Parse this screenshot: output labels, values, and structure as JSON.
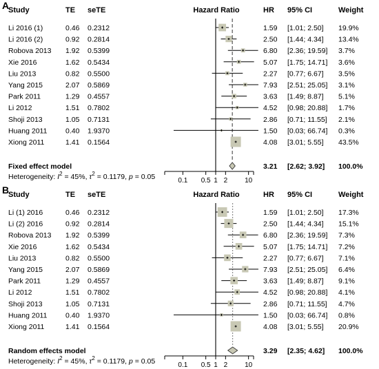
{
  "chart_data": [
    {
      "type": "forest",
      "panel": "A",
      "headers": {
        "study": "Study",
        "te": "TE",
        "sete": "seTE",
        "plot": "Hazard Ratio",
        "hr": "HR",
        "ci": "95% CI",
        "weight": "Weight"
      },
      "x_scale": "log",
      "xlim": [
        0.05,
        20
      ],
      "x_ticks": [
        0.1,
        0.5,
        1,
        2,
        10
      ],
      "x_tick_labels": [
        "0.1",
        "0.5",
        "1",
        "2",
        "10"
      ],
      "reference_line": 1,
      "pooled_line": 3.21,
      "studies": [
        {
          "study": "Li 2016 (1)",
          "te": "0.46",
          "sete": "0.2312",
          "hr": "1.59",
          "ci": "[1.01;  2.50]",
          "weight": "19.9%",
          "hr_value": 1.59,
          "lo": 1.01,
          "hi": 2.5,
          "w": 19.9
        },
        {
          "study": "Li 2016 (2)",
          "te": "0.92",
          "sete": "0.2814",
          "hr": "2.50",
          "ci": "[1.44;  4.34]",
          "weight": "13.4%",
          "hr_value": 2.5,
          "lo": 1.44,
          "hi": 4.34,
          "w": 13.4
        },
        {
          "study": "Robova 2013",
          "te": "1.92",
          "sete": "0.5399",
          "hr": "6.80",
          "ci": "[2.36; 19.59]",
          "weight": "3.7%",
          "hr_value": 6.8,
          "lo": 2.36,
          "hi": 19.59,
          "w": 3.7
        },
        {
          "study": "Xie 2016",
          "te": "1.62",
          "sete": "0.5434",
          "hr": "5.07",
          "ci": "[1.75; 14.71]",
          "weight": "3.6%",
          "hr_value": 5.07,
          "lo": 1.75,
          "hi": 14.71,
          "w": 3.6
        },
        {
          "study": "Liu 2013",
          "te": "0.82",
          "sete": "0.5500",
          "hr": "2.27",
          "ci": "[0.77;  6.67]",
          "weight": "3.5%",
          "hr_value": 2.27,
          "lo": 0.77,
          "hi": 6.67,
          "w": 3.5
        },
        {
          "study": "Yang 2015",
          "te": "2.07",
          "sete": "0.5869",
          "hr": "7.93",
          "ci": "[2.51; 25.05]",
          "weight": "3.1%",
          "hr_value": 7.93,
          "lo": 2.51,
          "hi": 25.05,
          "w": 3.1
        },
        {
          "study": "Park 2011",
          "te": "1.29",
          "sete": "0.4557",
          "hr": "3.63",
          "ci": "[1.49;  8.87]",
          "weight": "5.1%",
          "hr_value": 3.63,
          "lo": 1.49,
          "hi": 8.87,
          "w": 5.1
        },
        {
          "study": "Li 2012",
          "te": "1.51",
          "sete": "0.7802",
          "hr": "4.52",
          "ci": "[0.98; 20.88]",
          "weight": "1.7%",
          "hr_value": 4.52,
          "lo": 0.98,
          "hi": 20.88,
          "w": 1.7
        },
        {
          "study": "Shoji 2013",
          "te": "1.05",
          "sete": "0.7131",
          "hr": "2.86",
          "ci": "[0.71; 11.55]",
          "weight": "2.1%",
          "hr_value": 2.86,
          "lo": 0.71,
          "hi": 11.55,
          "w": 2.1
        },
        {
          "study": "Huang 2011",
          "te": "0.40",
          "sete": "1.9370",
          "hr": "1.50",
          "ci": "[0.03; 66.74]",
          "weight": "0.3%",
          "hr_value": 1.5,
          "lo": 0.03,
          "hi": 66.74,
          "w": 0.3
        },
        {
          "study": "Xiong 2011",
          "te": "1.41",
          "sete": "0.1564",
          "hr": "4.08",
          "ci": "[3.01;  5.55]",
          "weight": "43.5%",
          "hr_value": 4.08,
          "lo": 3.01,
          "hi": 5.55,
          "w": 43.5
        }
      ],
      "pooled": {
        "label": "Fixed effect model",
        "hr": "3.21",
        "ci": "[2.62;  3.92]",
        "weight": "100.0%",
        "hr_value": 3.21,
        "lo": 2.62,
        "hi": 3.92
      },
      "heterogeneity": {
        "prefix": "Heterogeneity:",
        "i2_base": "I",
        "i2_exp": "2",
        "i2_val": " = 45%, ",
        "tau2_base": "τ",
        "tau2_exp": "2",
        "tau2_val": " = 0.1179, ",
        "p_label": "p",
        "p_val": " = 0.05"
      },
      "colors": {
        "box": "#c8c8b4",
        "box_stroke": "#9a9a86",
        "diamond": "#c8c8b4"
      }
    },
    {
      "type": "forest",
      "panel": "B",
      "headers": {
        "study": "Study",
        "te": "TE",
        "sete": "seTE",
        "plot": "Hazard Ratio",
        "hr": "HR",
        "ci": "95% CI",
        "weight": "Weight"
      },
      "x_scale": "log",
      "xlim": [
        0.05,
        20
      ],
      "x_ticks": [
        0.1,
        0.5,
        1,
        2,
        10
      ],
      "x_tick_labels": [
        "0.1",
        "0.5",
        "1",
        "2",
        "10"
      ],
      "reference_line": 1,
      "pooled_line": 3.29,
      "studies": [
        {
          "study": "Li (1) 2016",
          "te": "0.46",
          "sete": "0.2312",
          "hr": "1.59",
          "ci": "[1.01;  2.50]",
          "weight": "17.3%",
          "hr_value": 1.59,
          "lo": 1.01,
          "hi": 2.5,
          "w": 17.3
        },
        {
          "study": "Li (2) 2016",
          "te": "0.92",
          "sete": "0.2814",
          "hr": "2.50",
          "ci": "[1.44;  4.34]",
          "weight": "15.1%",
          "hr_value": 2.5,
          "lo": 1.44,
          "hi": 4.34,
          "w": 15.1
        },
        {
          "study": "Robova 2013",
          "te": "1.92",
          "sete": "0.5399",
          "hr": "6.80",
          "ci": "[2.36; 19.59]",
          "weight": "7.3%",
          "hr_value": 6.8,
          "lo": 2.36,
          "hi": 19.59,
          "w": 7.3
        },
        {
          "study": "Xie 2016",
          "te": "1.62",
          "sete": "0.5434",
          "hr": "5.07",
          "ci": "[1.75; 14.71]",
          "weight": "7.2%",
          "hr_value": 5.07,
          "lo": 1.75,
          "hi": 14.71,
          "w": 7.2
        },
        {
          "study": "Liu 2013",
          "te": "0.82",
          "sete": "0.5500",
          "hr": "2.27",
          "ci": "[0.77;  6.67]",
          "weight": "7.1%",
          "hr_value": 2.27,
          "lo": 0.77,
          "hi": 6.67,
          "w": 7.1
        },
        {
          "study": "Yang 2015",
          "te": "2.07",
          "sete": "0.5869",
          "hr": "7.93",
          "ci": "[2.51; 25.05]",
          "weight": "6.4%",
          "hr_value": 7.93,
          "lo": 2.51,
          "hi": 25.05,
          "w": 6.4
        },
        {
          "study": "Park 2011",
          "te": "1.29",
          "sete": "0.4557",
          "hr": "3.63",
          "ci": "[1.49;  8.87]",
          "weight": "9.1%",
          "hr_value": 3.63,
          "lo": 1.49,
          "hi": 8.87,
          "w": 9.1
        },
        {
          "study": "Li 2012",
          "te": "1.51",
          "sete": "0.7802",
          "hr": "4.52",
          "ci": "[0.98; 20.88]",
          "weight": "4.1%",
          "hr_value": 4.52,
          "lo": 0.98,
          "hi": 20.88,
          "w": 4.1
        },
        {
          "study": "Shoji 2013",
          "te": "1.05",
          "sete": "0.7131",
          "hr": "2.86",
          "ci": "[0.71; 11.55]",
          "weight": "4.7%",
          "hr_value": 2.86,
          "lo": 0.71,
          "hi": 11.55,
          "w": 4.7
        },
        {
          "study": "Huang 2011",
          "te": "0.40",
          "sete": "1.9370",
          "hr": "1.50",
          "ci": "[0.03; 66.74]",
          "weight": "0.8%",
          "hr_value": 1.5,
          "lo": 0.03,
          "hi": 66.74,
          "w": 0.8
        },
        {
          "study": "Xiong 2011",
          "te": "1.41",
          "sete": "0.1564",
          "hr": "4.08",
          "ci": "[3.01;  5.55]",
          "weight": "20.9%",
          "hr_value": 4.08,
          "lo": 3.01,
          "hi": 5.55,
          "w": 20.9
        }
      ],
      "pooled": {
        "label": "Random effects model",
        "hr": "3.29",
        "ci": "[2.35;  4.62]",
        "weight": "100.0%",
        "hr_value": 3.29,
        "lo": 2.35,
        "hi": 4.62
      },
      "heterogeneity": {
        "prefix": "Heterogeneity:",
        "i2_base": "I",
        "i2_exp": "2",
        "i2_val": " = 45%, ",
        "tau2_base": "τ",
        "tau2_exp": "2",
        "tau2_val": " = 0.1179, ",
        "p_label": "p",
        "p_val": " = 0.05"
      },
      "colors": {
        "box": "#c8c8b4",
        "box_stroke": "#9a9a86",
        "diamond": "#c8c8b4"
      }
    }
  ],
  "panel_letters": [
    "A",
    "B"
  ]
}
